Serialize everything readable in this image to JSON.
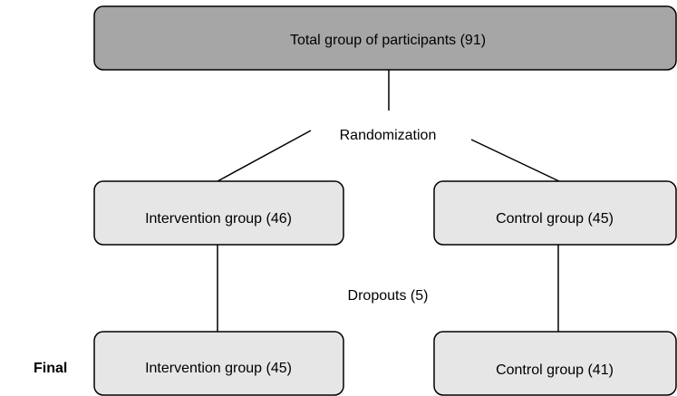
{
  "nodes": [
    {
      "label": "Total group of participants (91)"
    },
    {
      "label": "Randomization"
    },
    {
      "label": "Intervention group (46)"
    },
    {
      "label": "Control group (45)"
    },
    {
      "label": "Dropouts (5)"
    },
    {
      "label": "Intervention group (45)"
    },
    {
      "label": "Control group (41)"
    },
    {
      "label": "Final"
    }
  ]
}
